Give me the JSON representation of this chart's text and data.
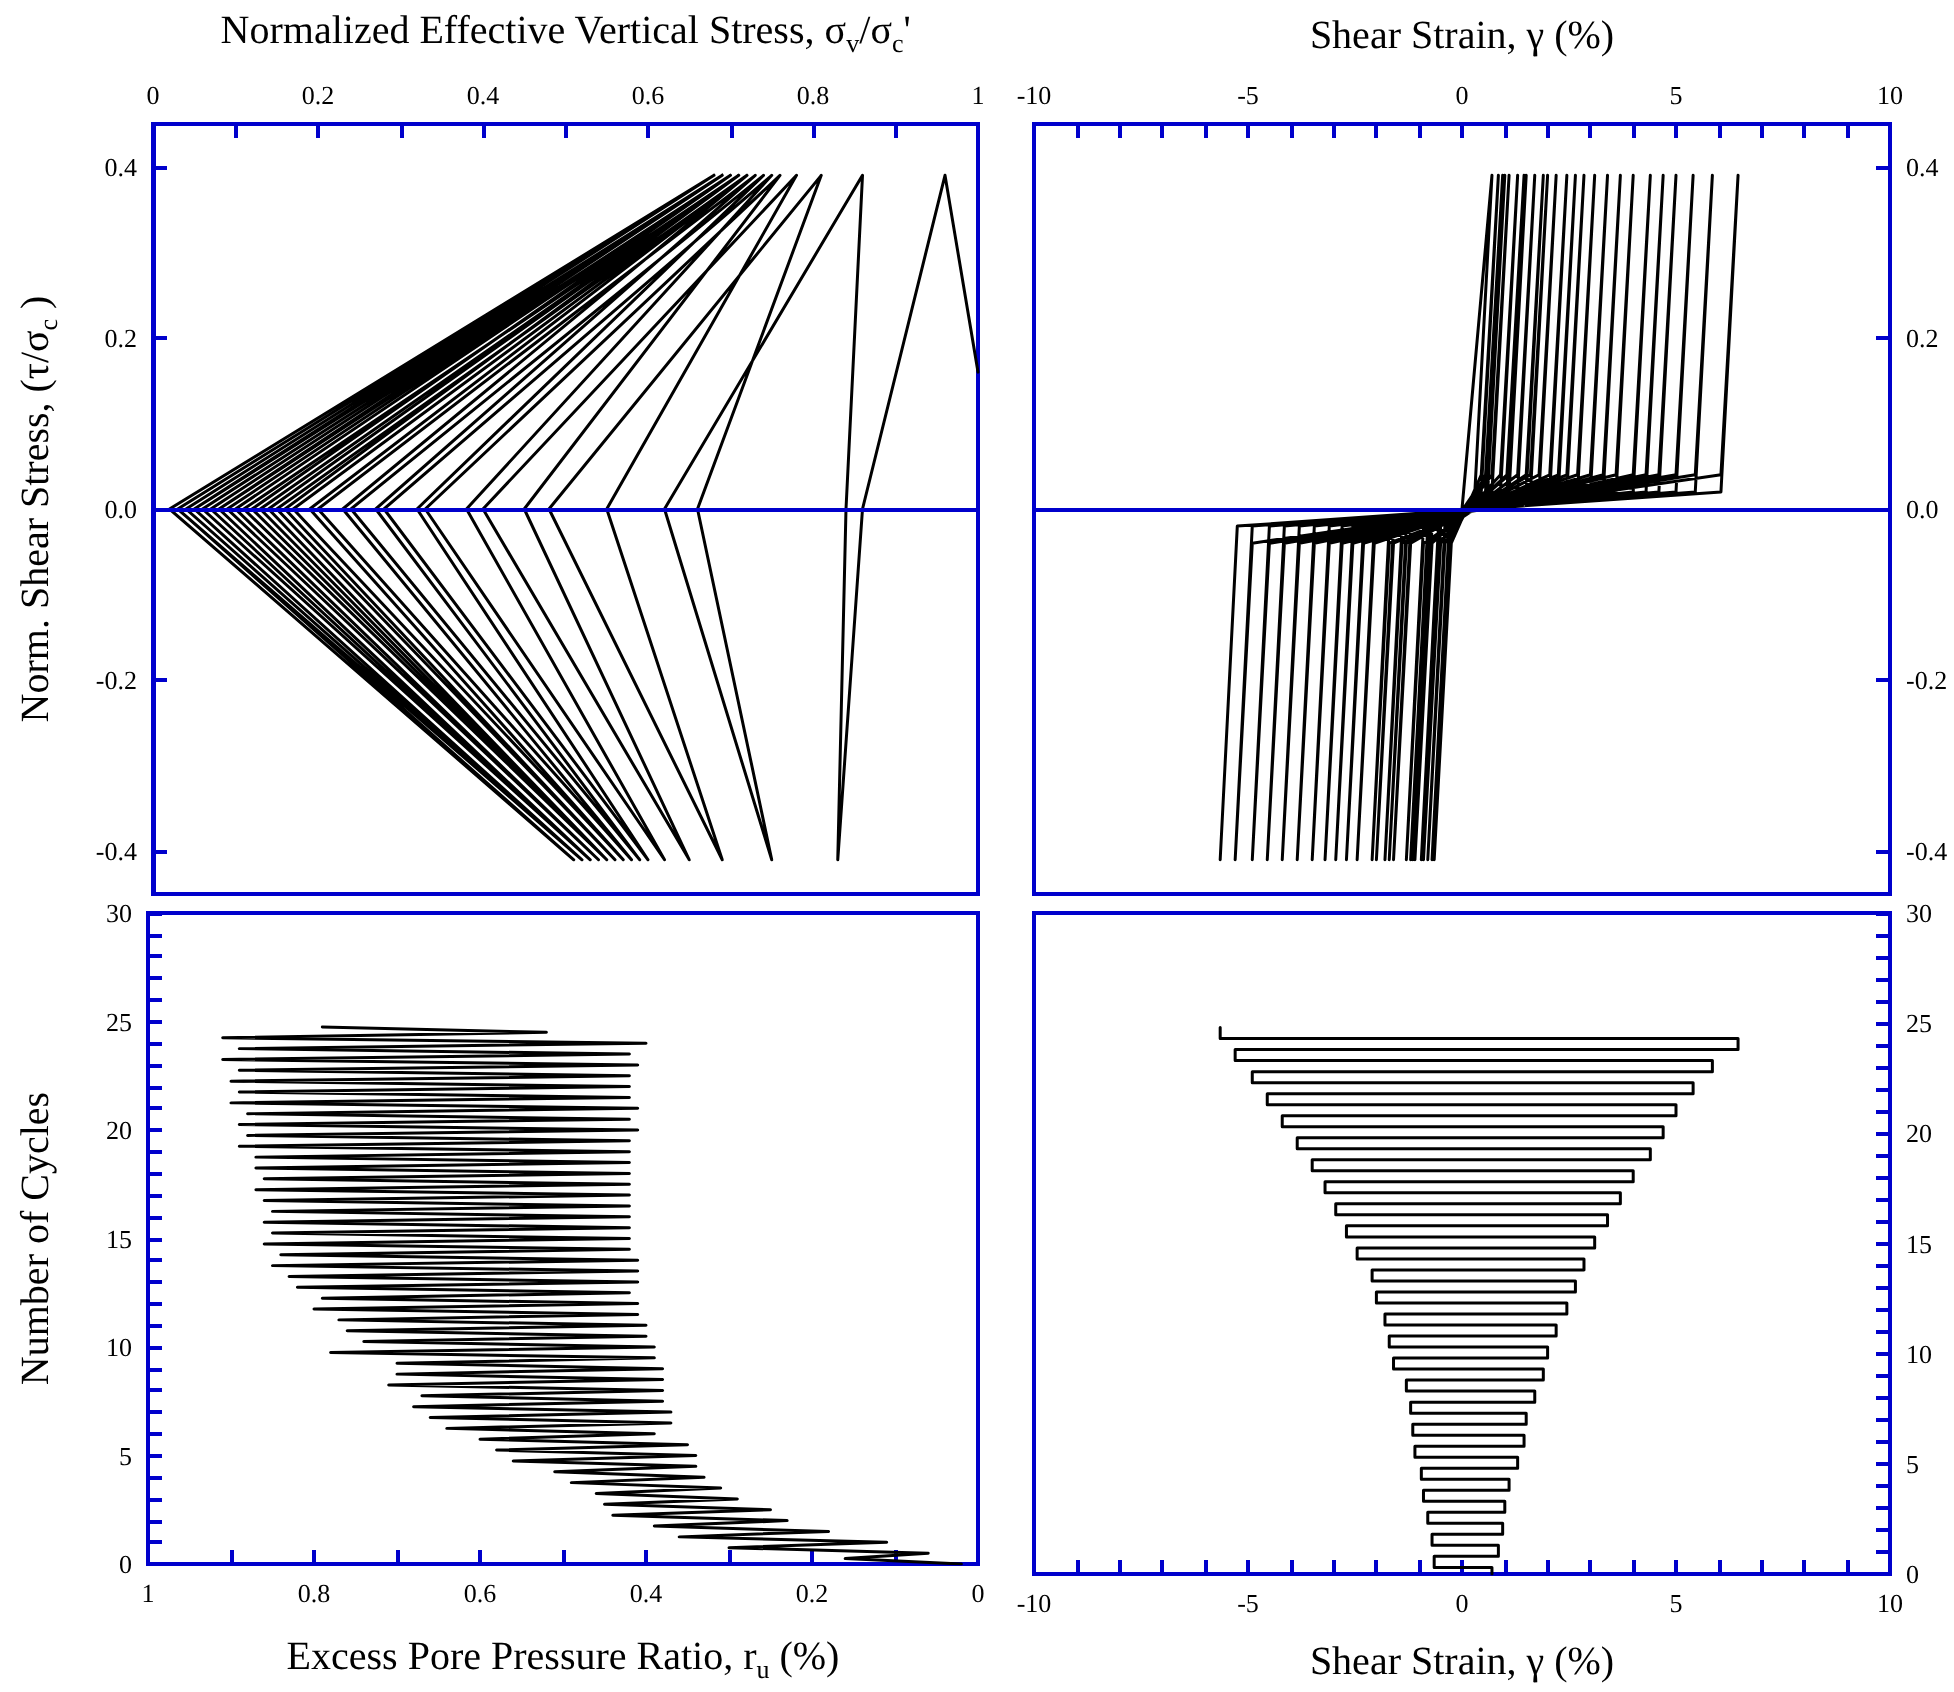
{
  "chart_data": [
    {
      "type": "line",
      "xlabel": "Normalized Effective Vertical Stress, σ$_{v}$/σ$_{c}$'",
      "ylabel": "Norm. Shear Stress, (τ/σ$_{c}$ )",
      "color": "#000000",
      "marker": "none",
      "line_style": "solid",
      "xlim": [
        0,
        1
      ],
      "xticks": [
        0,
        {
          "value": 0.1,
          "label": null
        },
        0.2,
        {
          "value": 0.3,
          "label": null
        },
        0.4,
        {
          "value": 0.5,
          "label": null
        },
        0.6,
        {
          "value": 0.7,
          "label": null
        },
        0.8,
        {
          "value": 0.9,
          "label": null
        },
        1
      ],
      "ylim": [
        -0.45,
        0.45
      ],
      "yticks": [
        -0.4,
        -0.2,
        {
          "value": 0,
          "label": "0.0"
        },
        0.2,
        0.4
      ],
      "ref_lines": [
        {
          "axis": "y",
          "value": 0,
          "color": "#0000cc"
        }
      ],
      "x": [
        1.0,
        0.96,
        0.86,
        0.83,
        0.84,
        0.86,
        0.62,
        0.75,
        0.66,
        0.81,
        0.48,
        0.69,
        0.55,
        0.78,
        0.4,
        0.65,
        0.45,
        0.76,
        0.33,
        0.62,
        0.38,
        0.75,
        0.28,
        0.6,
        0.32,
        0.74,
        0.24,
        0.59,
        0.27,
        0.73,
        0.2,
        0.58,
        0.23,
        0.72,
        0.17,
        0.57,
        0.19,
        0.72,
        0.15,
        0.56,
        0.16,
        0.71,
        0.13,
        0.55,
        0.14,
        0.71,
        0.11,
        0.55,
        0.12,
        0.7,
        0.1,
        0.54,
        0.1,
        0.7,
        0.09,
        0.54,
        0.09,
        0.7,
        0.08,
        0.53,
        0.08,
        0.69,
        0.07,
        0.53,
        0.07,
        0.69,
        0.06,
        0.53,
        0.06,
        0.69,
        0.05,
        0.52,
        0.05,
        0.69,
        0.05,
        0.52,
        0.05,
        0.68,
        0.04,
        0.52,
        0.04,
        0.68,
        0.04,
        0.52,
        0.04,
        0.68,
        0.04,
        0.52,
        0.03,
        0.68,
        0.03,
        0.52,
        0.03,
        0.68,
        0.03,
        0.51,
        0.02,
        0.68,
        0.03,
        0.51,
        0.02
      ],
      "values": [
        0.16,
        0.39,
        0,
        -0.41,
        0,
        0.39,
        0,
        -0.41,
        0,
        0.39,
        0,
        -0.41,
        0,
        0.39,
        0,
        -0.41,
        0,
        0.39,
        0,
        -0.41,
        0,
        0.39,
        0,
        -0.41,
        0,
        0.39,
        0,
        -0.41,
        0,
        0.39,
        0,
        -0.41,
        0,
        0.39,
        0,
        -0.41,
        0,
        0.39,
        0,
        -0.41,
        0,
        0.39,
        0,
        -0.41,
        0,
        0.39,
        0,
        -0.41,
        0,
        0.39,
        0,
        -0.41,
        0,
        0.39,
        0,
        -0.41,
        0,
        0.39,
        0,
        -0.41,
        0,
        0.39,
        0,
        -0.41,
        0,
        0.39,
        0,
        -0.41,
        0,
        0.39,
        0,
        -0.41,
        0,
        0.39,
        0,
        -0.41,
        0,
        0.39,
        0,
        -0.41,
        0,
        0.39,
        0,
        -0.41,
        0,
        0.39,
        0,
        -0.41,
        0,
        0.39,
        0,
        -0.41,
        0,
        0.39,
        0,
        -0.41,
        0,
        0.39,
        0,
        -0.41,
        0
      ]
    },
    {
      "type": "line",
      "xlabel": "Shear Strain, γ (%)",
      "color": "#000000",
      "marker": "none",
      "line_style": "solid",
      "xlim": [
        -10,
        10
      ],
      "xticks": [
        -10,
        {
          "value": -9,
          "label": null
        },
        {
          "value": -8,
          "label": null
        },
        {
          "value": -7,
          "label": null
        },
        {
          "value": -6,
          "label": null
        },
        -5,
        {
          "value": -4,
          "label": null
        },
        {
          "value": -3,
          "label": null
        },
        {
          "value": -2,
          "label": null
        },
        {
          "value": -1,
          "label": null
        },
        0,
        {
          "value": 1,
          "label": null
        },
        {
          "value": 2,
          "label": null
        },
        {
          "value": 3,
          "label": null
        },
        {
          "value": 4,
          "label": null
        },
        5,
        {
          "value": 6,
          "label": null
        },
        {
          "value": 7,
          "label": null
        },
        {
          "value": 8,
          "label": null
        },
        {
          "value": 9,
          "label": null
        },
        10
      ],
      "ylim": [
        -0.45,
        0.45
      ],
      "yticks": [
        -0.4,
        -0.2,
        {
          "value": 0,
          "label": "0.0"
        },
        0.2,
        0.4
      ],
      "ref_lines": [
        {
          "axis": "y",
          "value": 0,
          "color": "#0000cc"
        }
      ],
      "x": [
        0,
        0.7,
        0.3,
        -0.25,
        -0.65,
        -0.25,
        0.45,
        0.85,
        0.45,
        -0.3,
        -0.7,
        -0.3,
        0.55,
        0.95,
        0.55,
        -0.4,
        -0.8,
        -0.4,
        0.6,
        1.0,
        0.6,
        -0.5,
        -0.9,
        -0.5,
        0.7,
        1.1,
        0.7,
        -0.55,
        -0.95,
        -0.55,
        0.9,
        1.3,
        0.9,
        -0.7,
        -1.1,
        -0.7,
        1.05,
        1.45,
        1.05,
        -0.75,
        -1.15,
        -0.75,
        1.1,
        1.5,
        1.1,
        -0.8,
        -1.2,
        -0.8,
        1.3,
        1.7,
        1.3,
        -0.9,
        -1.3,
        -0.9,
        1.5,
        1.9,
        1.5,
        -1.2,
        -1.6,
        -1.2,
        1.6,
        2.0,
        1.6,
        -1.3,
        -1.7,
        -1.3,
        1.8,
        2.2,
        1.8,
        -1.4,
        -1.8,
        -1.4,
        2.05,
        2.45,
        2.05,
        -1.6,
        -2.0,
        -1.6,
        2.25,
        2.65,
        2.25,
        -1.7,
        -2.1,
        -1.7,
        2.45,
        2.85,
        2.45,
        -2.05,
        -2.45,
        -2.05,
        2.7,
        3.1,
        2.7,
        -2.3,
        -2.7,
        -2.3,
        3.0,
        3.4,
        3.0,
        -2.55,
        -2.95,
        -2.55,
        3.3,
        3.7,
        3.3,
        -2.8,
        -3.2,
        -2.8,
        3.6,
        4.0,
        3.6,
        -3.1,
        -3.5,
        -3.1,
        4.0,
        4.4,
        4.0,
        -3.45,
        -3.85,
        -3.45,
        4.3,
        4.7,
        4.3,
        -3.8,
        -4.2,
        -3.8,
        4.6,
        5.0,
        4.6,
        -4.15,
        -4.55,
        -4.15,
        5.0,
        5.4,
        5.0,
        -4.5,
        -4.9,
        -4.5,
        5.45,
        5.85,
        5.45,
        -4.9,
        -5.3,
        -4.9,
        6.05,
        6.45,
        6.05,
        -5.25,
        -5.65
      ],
      "values": [
        0,
        0.39,
        0.02,
        -0.02,
        -0.41,
        -0.04,
        0.04,
        0.39,
        0.02,
        -0.02,
        -0.41,
        -0.04,
        0.04,
        0.39,
        0.02,
        -0.02,
        -0.41,
        -0.04,
        0.04,
        0.39,
        0.02,
        -0.02,
        -0.41,
        -0.04,
        0.04,
        0.39,
        0.02,
        -0.02,
        -0.41,
        -0.04,
        0.04,
        0.39,
        0.02,
        -0.02,
        -0.41,
        -0.04,
        0.04,
        0.39,
        0.02,
        -0.02,
        -0.41,
        -0.04,
        0.04,
        0.39,
        0.02,
        -0.02,
        -0.41,
        -0.04,
        0.04,
        0.39,
        0.02,
        -0.02,
        -0.41,
        -0.04,
        0.04,
        0.39,
        0.02,
        -0.02,
        -0.41,
        -0.04,
        0.04,
        0.39,
        0.02,
        -0.02,
        -0.41,
        -0.04,
        0.04,
        0.39,
        0.02,
        -0.02,
        -0.41,
        -0.04,
        0.04,
        0.39,
        0.02,
        -0.02,
        -0.41,
        -0.04,
        0.04,
        0.39,
        0.02,
        -0.02,
        -0.41,
        -0.04,
        0.04,
        0.39,
        0.02,
        -0.02,
        -0.41,
        -0.04,
        0.04,
        0.39,
        0.02,
        -0.02,
        -0.41,
        -0.04,
        0.04,
        0.39,
        0.02,
        -0.02,
        -0.41,
        -0.04,
        0.04,
        0.39,
        0.02,
        -0.02,
        -0.41,
        -0.04,
        0.04,
        0.39,
        0.02,
        -0.02,
        -0.41,
        -0.04,
        0.04,
        0.39,
        0.02,
        -0.02,
        -0.41,
        -0.04,
        0.04,
        0.39,
        0.02,
        -0.02,
        -0.41,
        -0.04,
        0.04,
        0.39,
        0.02,
        -0.02,
        -0.41,
        -0.04,
        0.04,
        0.39,
        0.02,
        -0.02,
        -0.41,
        -0.04,
        0.04,
        0.39,
        0.02,
        -0.02,
        -0.41,
        -0.04,
        0.04,
        0.39,
        0.02,
        -0.02,
        -0.41
      ]
    },
    {
      "type": "line",
      "xlabel": "Excess Pore Pressure Ratio, r$_{u}$ (%)",
      "ylabel": "Number of Cycles",
      "color": "#000000",
      "marker": "none",
      "line_style": "solid",
      "xlim": [
        1,
        0
      ],
      "xticks": [
        1,
        {
          "value": 0.9,
          "label": null
        },
        0.8,
        {
          "value": 0.7,
          "label": null
        },
        0.6,
        {
          "value": 0.5,
          "label": null
        },
        0.4,
        {
          "value": 0.3,
          "label": null
        },
        0.2,
        {
          "value": 0.1,
          "label": null
        },
        0
      ],
      "ylim": [
        0,
        30
      ],
      "yticks": [
        0,
        {
          "value": 1,
          "label": null
        },
        {
          "value": 2,
          "label": null
        },
        {
          "value": 3,
          "label": null
        },
        {
          "value": 4,
          "label": null
        },
        5,
        {
          "value": 6,
          "label": null
        },
        {
          "value": 7,
          "label": null
        },
        {
          "value": 8,
          "label": null
        },
        {
          "value": 9,
          "label": null
        },
        10,
        {
          "value": 11,
          "label": null
        },
        {
          "value": 12,
          "label": null
        },
        {
          "value": 13,
          "label": null
        },
        {
          "value": 14,
          "label": null
        },
        15,
        {
          "value": 16,
          "label": null
        },
        {
          "value": 17,
          "label": null
        },
        {
          "value": 18,
          "label": null
        },
        {
          "value": 19,
          "label": null
        },
        20,
        {
          "value": 21,
          "label": null
        },
        {
          "value": 22,
          "label": null
        },
        {
          "value": 23,
          "label": null
        },
        {
          "value": 24,
          "label": null
        },
        25,
        {
          "value": 26,
          "label": null
        },
        {
          "value": 27,
          "label": null
        },
        {
          "value": 28,
          "label": null
        },
        {
          "value": 29,
          "label": null
        },
        30
      ],
      "x": [
        0.02,
        0.16,
        0.06,
        0.3,
        0.11,
        0.36,
        0.18,
        0.39,
        0.23,
        0.44,
        0.25,
        0.45,
        0.29,
        0.46,
        0.31,
        0.49,
        0.33,
        0.51,
        0.34,
        0.56,
        0.34,
        0.58,
        0.35,
        0.6,
        0.39,
        0.64,
        0.37,
        0.66,
        0.37,
        0.68,
        0.38,
        0.67,
        0.38,
        0.71,
        0.38,
        0.7,
        0.38,
        0.7,
        0.39,
        0.78,
        0.39,
        0.74,
        0.4,
        0.76,
        0.4,
        0.77,
        0.41,
        0.8,
        0.41,
        0.79,
        0.42,
        0.82,
        0.41,
        0.83,
        0.41,
        0.85,
        0.41,
        0.84,
        0.42,
        0.86,
        0.42,
        0.85,
        0.42,
        0.86,
        0.42,
        0.85,
        0.42,
        0.86,
        0.42,
        0.87,
        0.42,
        0.86,
        0.42,
        0.87,
        0.42,
        0.87,
        0.42,
        0.89,
        0.42,
        0.88,
        0.41,
        0.89,
        0.42,
        0.88,
        0.41,
        0.9,
        0.42,
        0.89,
        0.42,
        0.9,
        0.42,
        0.89,
        0.41,
        0.91,
        0.42,
        0.89,
        0.4,
        0.91,
        0.52,
        0.79
      ],
      "values": [
        0,
        0.25,
        0.5,
        0.75,
        1,
        1.25,
        1.5,
        1.75,
        2,
        2.25,
        2.5,
        2.75,
        3,
        3.25,
        3.5,
        3.75,
        4,
        4.25,
        4.5,
        4.75,
        5,
        5.25,
        5.5,
        5.75,
        6,
        6.25,
        6.5,
        6.75,
        7,
        7.25,
        7.5,
        7.75,
        8,
        8.25,
        8.5,
        8.75,
        9,
        9.25,
        9.5,
        9.75,
        10,
        10.25,
        10.5,
        10.75,
        11,
        11.25,
        11.5,
        11.75,
        12,
        12.25,
        12.5,
        12.75,
        13,
        13.25,
        13.5,
        13.75,
        14,
        14.25,
        14.5,
        14.75,
        15,
        15.25,
        15.5,
        15.75,
        16,
        16.25,
        16.5,
        16.75,
        17,
        17.25,
        17.5,
        17.75,
        18,
        18.25,
        18.5,
        18.75,
        19,
        19.25,
        19.5,
        19.75,
        20,
        20.25,
        20.5,
        20.75,
        21,
        21.25,
        21.5,
        21.75,
        22,
        22.25,
        22.5,
        22.75,
        23,
        23.25,
        23.5,
        23.75,
        24,
        24.25,
        24.5,
        24.75
      ]
    },
    {
      "type": "line",
      "xlabel": "Shear Strain, γ (%)",
      "color": "#000000",
      "marker": "none",
      "line_style": "solid",
      "xlim": [
        -10,
        10
      ],
      "xticks": [
        -10,
        {
          "value": -9,
          "label": null
        },
        {
          "value": -8,
          "label": null
        },
        {
          "value": -7,
          "label": null
        },
        {
          "value": -6,
          "label": null
        },
        -5,
        {
          "value": -4,
          "label": null
        },
        {
          "value": -3,
          "label": null
        },
        {
          "value": -2,
          "label": null
        },
        {
          "value": -1,
          "label": null
        },
        0,
        {
          "value": 1,
          "label": null
        },
        {
          "value": 2,
          "label": null
        },
        {
          "value": 3,
          "label": null
        },
        {
          "value": 4,
          "label": null
        },
        5,
        {
          "value": 6,
          "label": null
        },
        {
          "value": 7,
          "label": null
        },
        {
          "value": 8,
          "label": null
        },
        {
          "value": 9,
          "label": null
        },
        10
      ],
      "ylim": [
        0,
        30
      ],
      "yticks": [
        0,
        {
          "value": 1,
          "label": null
        },
        {
          "value": 2,
          "label": null
        },
        {
          "value": 3,
          "label": null
        },
        {
          "value": 4,
          "label": null
        },
        5,
        {
          "value": 6,
          "label": null
        },
        {
          "value": 7,
          "label": null
        },
        {
          "value": 8,
          "label": null
        },
        {
          "value": 9,
          "label": null
        },
        10,
        {
          "value": 11,
          "label": null
        },
        {
          "value": 12,
          "label": null
        },
        {
          "value": 13,
          "label": null
        },
        {
          "value": 14,
          "label": null
        },
        15,
        {
          "value": 16,
          "label": null
        },
        {
          "value": 17,
          "label": null
        },
        {
          "value": 18,
          "label": null
        },
        {
          "value": 19,
          "label": null
        },
        20,
        {
          "value": 21,
          "label": null
        },
        {
          "value": 22,
          "label": null
        },
        {
          "value": 23,
          "label": null
        },
        {
          "value": 24,
          "label": null
        },
        25,
        {
          "value": 26,
          "label": null
        },
        {
          "value": 27,
          "label": null
        },
        {
          "value": 28,
          "label": null
        },
        {
          "value": 29,
          "label": null
        },
        30
      ],
      "x": [
        0.7,
        0.7,
        -0.65,
        -0.65,
        0.85,
        0.85,
        -0.7,
        -0.7,
        0.95,
        0.95,
        -0.8,
        -0.8,
        1.0,
        1.0,
        -0.9,
        -0.9,
        1.1,
        1.1,
        -0.95,
        -0.95,
        1.3,
        1.3,
        -1.1,
        -1.1,
        1.45,
        1.45,
        -1.15,
        -1.15,
        1.5,
        1.5,
        -1.2,
        -1.2,
        1.7,
        1.7,
        -1.3,
        -1.3,
        1.9,
        1.9,
        -1.6,
        -1.6,
        2.0,
        2.0,
        -1.7,
        -1.7,
        2.2,
        2.2,
        -1.8,
        -1.8,
        2.45,
        2.45,
        -2.0,
        -2.0,
        2.65,
        2.65,
        -2.1,
        -2.1,
        2.85,
        2.85,
        -2.45,
        -2.45,
        3.1,
        3.1,
        -2.7,
        -2.7,
        3.4,
        3.4,
        -2.95,
        -2.95,
        3.7,
        3.7,
        -3.2,
        -3.2,
        4.0,
        4.0,
        -3.5,
        -3.5,
        4.4,
        4.4,
        -3.85,
        -3.85,
        4.7,
        4.7,
        -4.2,
        -4.2,
        5.0,
        5.0,
        -4.55,
        -4.55,
        5.4,
        5.4,
        -4.9,
        -4.9,
        5.85,
        5.85,
        -5.3,
        -5.3,
        6.45,
        6.45,
        -5.65,
        -5.65
      ],
      "values": [
        0,
        0.3,
        0.3,
        0.8,
        0.8,
        1.3,
        1.3,
        1.8,
        1.8,
        2.3,
        2.3,
        2.8,
        2.8,
        3.3,
        3.3,
        3.8,
        3.8,
        4.3,
        4.3,
        4.8,
        4.8,
        5.3,
        5.3,
        5.8,
        5.8,
        6.3,
        6.3,
        6.8,
        6.8,
        7.3,
        7.3,
        7.8,
        7.8,
        8.3,
        8.3,
        8.8,
        8.8,
        9.3,
        9.3,
        9.8,
        9.8,
        10.3,
        10.3,
        10.8,
        10.8,
        11.3,
        11.3,
        11.8,
        11.8,
        12.3,
        12.3,
        12.8,
        12.8,
        13.3,
        13.3,
        13.8,
        13.8,
        14.3,
        14.3,
        14.8,
        14.8,
        15.3,
        15.3,
        15.8,
        15.8,
        16.3,
        16.3,
        16.8,
        16.8,
        17.3,
        17.3,
        17.8,
        17.8,
        18.3,
        18.3,
        18.8,
        18.8,
        19.3,
        19.3,
        19.8,
        19.8,
        20.3,
        20.3,
        20.8,
        20.8,
        21.3,
        21.3,
        21.8,
        21.8,
        22.3,
        22.3,
        22.8,
        22.8,
        23.3,
        23.3,
        23.8,
        23.8,
        24.3,
        24.3,
        24.8
      ]
    }
  ]
}
